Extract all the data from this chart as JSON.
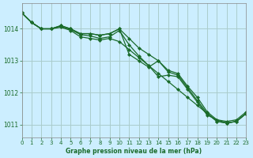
{
  "title": "Graphe pression niveau de la mer (hPa)",
  "background_color": "#cceeff",
  "plot_background": "#cceeff",
  "grid_color": "#aacccc",
  "line_color": "#1a6b2a",
  "marker_color": "#1a6b2a",
  "xlim": [
    0,
    23
  ],
  "ylim": [
    1010.6,
    1014.8
  ],
  "yticks": [
    1011,
    1012,
    1013,
    1014
  ],
  "xticks": [
    0,
    1,
    2,
    3,
    4,
    5,
    6,
    7,
    8,
    9,
    10,
    11,
    12,
    13,
    14,
    15,
    16,
    17,
    18,
    19,
    20,
    21,
    22,
    23
  ],
  "line1": [
    1014.5,
    1014.2,
    1014.0,
    1014.0,
    1014.1,
    1014.0,
    1013.85,
    1013.85,
    1013.8,
    1013.85,
    1014.0,
    1013.2,
    1013.0,
    1012.8,
    1013.0,
    1012.7,
    1012.6,
    1012.2,
    1011.85,
    1011.4,
    1011.15,
    1011.1,
    1011.15,
    1011.4
  ],
  "line2": [
    1014.5,
    1014.2,
    1014.0,
    1014.0,
    1014.1,
    1014.0,
    1013.85,
    1013.85,
    1013.8,
    1013.85,
    1014.0,
    1013.7,
    1013.4,
    1013.2,
    1013.0,
    1012.65,
    1012.55,
    1012.15,
    1011.75,
    1011.35,
    1011.1,
    1011.05,
    1011.1,
    1011.35
  ],
  "line3": [
    1014.5,
    1014.2,
    1014.0,
    1014.0,
    1014.05,
    1013.95,
    1013.75,
    1013.7,
    1013.65,
    1013.7,
    1013.6,
    1013.35,
    1013.1,
    1012.85,
    1012.6,
    1012.35,
    1012.1,
    1011.85,
    1011.6,
    1011.35,
    1011.1,
    1011.05,
    1011.1,
    1011.35
  ],
  "line4_x": [
    0,
    1,
    2,
    3,
    4,
    5,
    6,
    7,
    8,
    9,
    10,
    11,
    12,
    13,
    14,
    15,
    16,
    17,
    18,
    19,
    20,
    21,
    22,
    23
  ],
  "line4": [
    1014.5,
    1014.2,
    1014.0,
    1014.0,
    1014.08,
    1013.98,
    1013.82,
    1013.78,
    1013.7,
    1013.75,
    1013.95,
    1013.5,
    1013.15,
    1012.85,
    1012.5,
    1012.55,
    1012.5,
    1012.1,
    1011.7,
    1011.3,
    1011.15,
    1011.05,
    1011.1,
    1011.35
  ]
}
